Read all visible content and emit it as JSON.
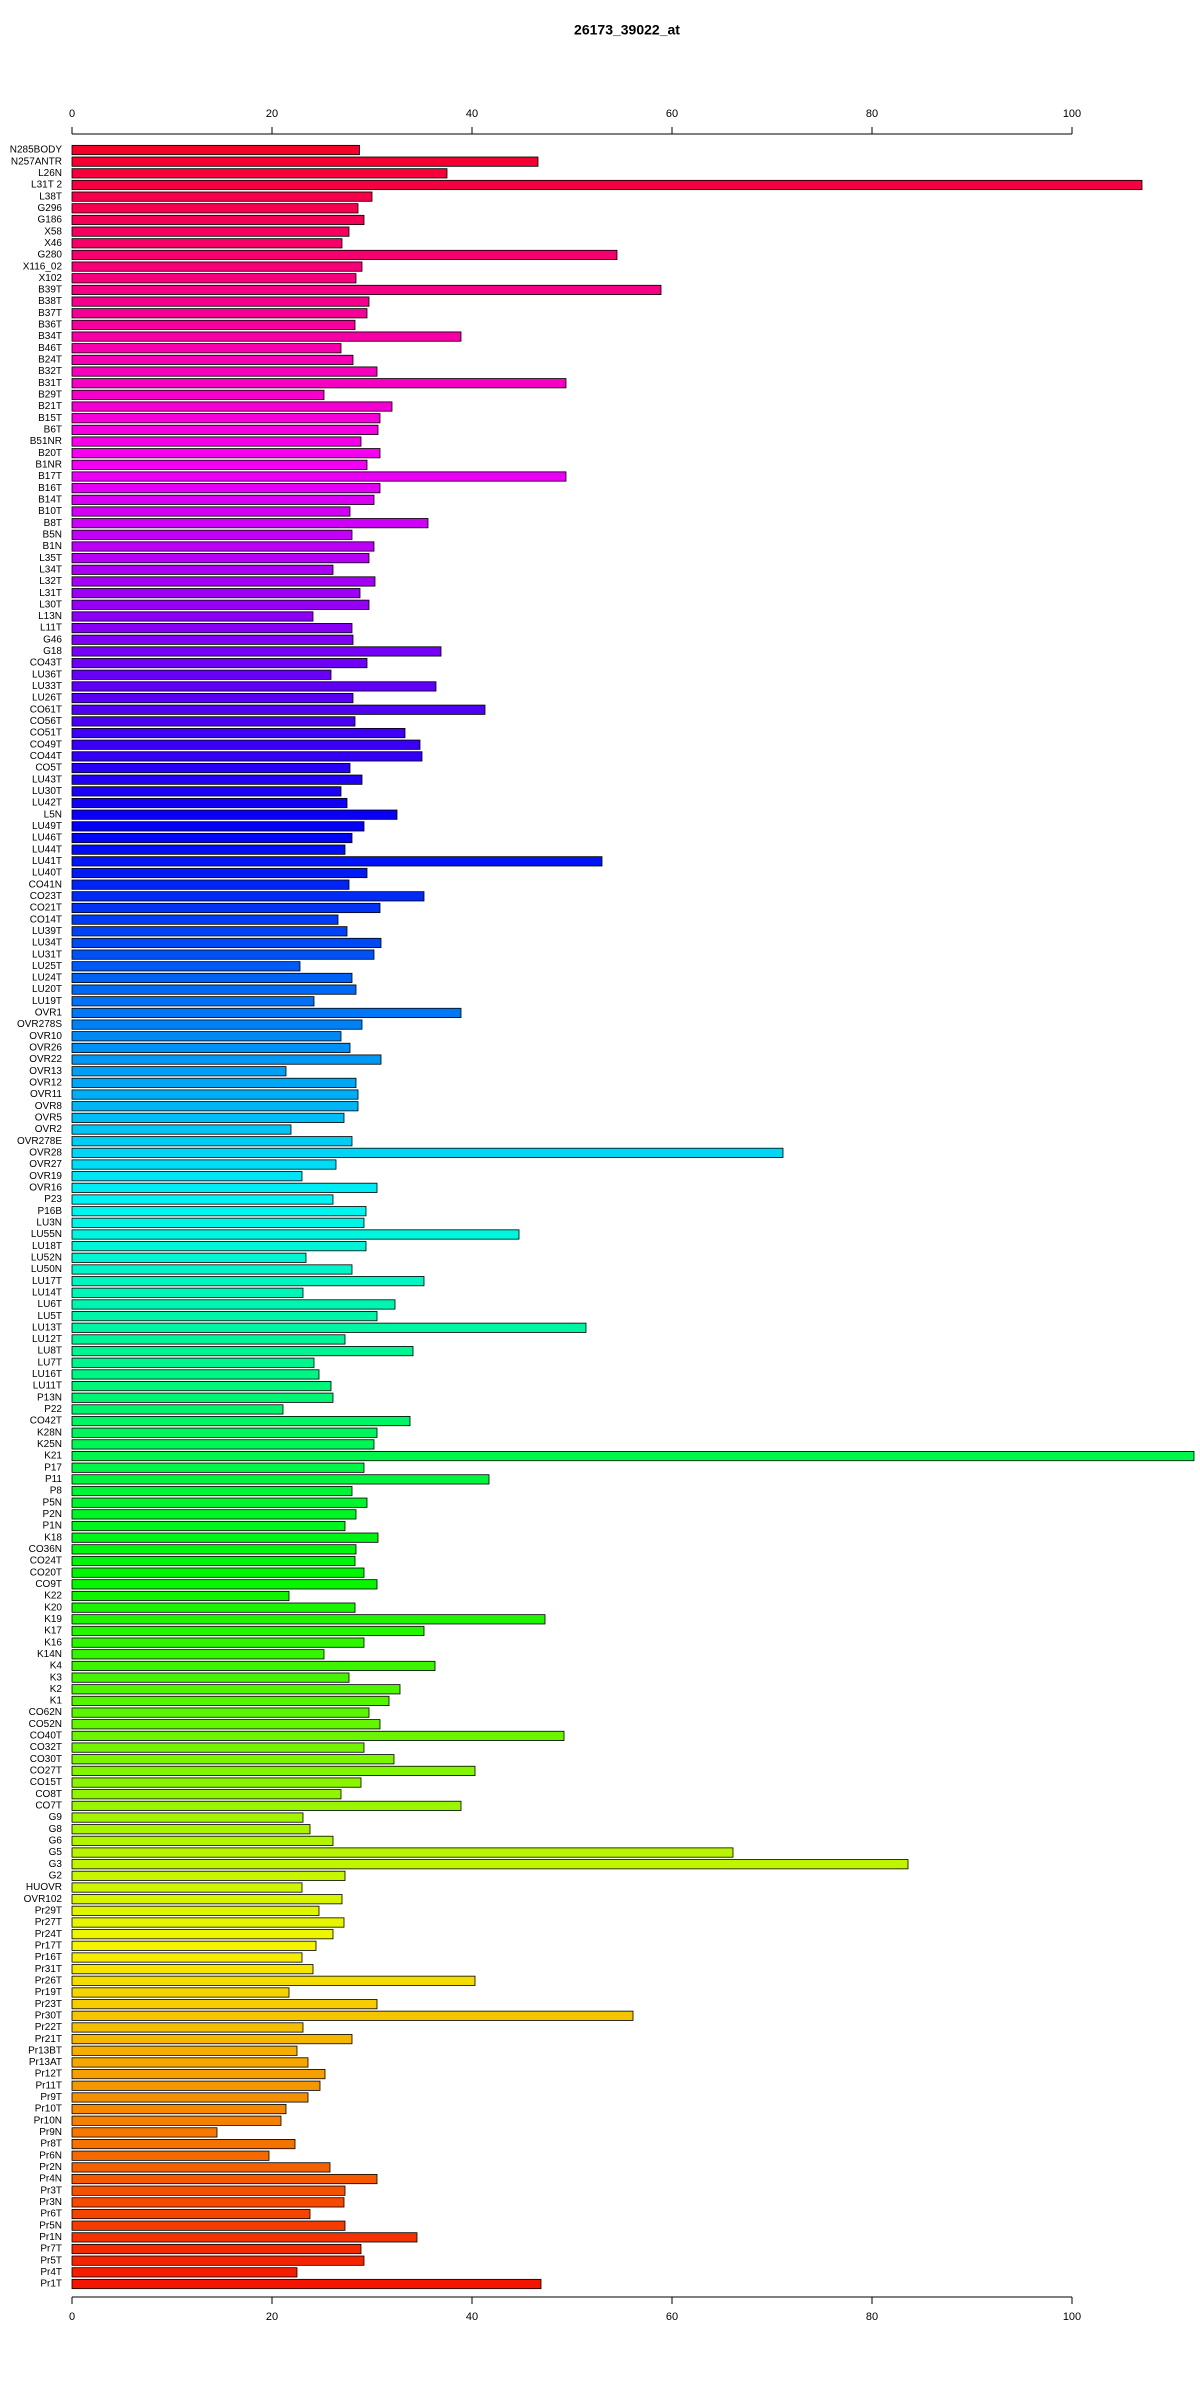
{
  "chart_data": {
    "type": "barh",
    "title": "26173_39022_at",
    "categories": [
      "N285BODY",
      "N257ANTR",
      "L26N",
      "L31T 2",
      "L38T",
      "G296",
      "G186",
      "X58",
      "X46",
      "G280",
      "X116_02",
      "X102",
      "B39T",
      "B38T",
      "B37T",
      "B36T",
      "B34T",
      "B46T",
      "B24T",
      "B32T",
      "B31T",
      "B29T",
      "B21T",
      "B15T",
      "B6T",
      "B51NR",
      "B20T",
      "B1NR",
      "B17T",
      "B16T",
      "B14T",
      "B10T",
      "B8T",
      "B5N",
      "B1N",
      "L35T",
      "L34T",
      "L32T",
      "L31T",
      "L30T",
      "L13N",
      "L11T",
      "G46",
      "G18",
      "CO43T",
      "LU36T",
      "LU33T",
      "LU26T",
      "CO61T",
      "CO56T",
      "CO51T",
      "CO49T",
      "CO44T",
      "CO5T",
      "LU43T",
      "LU30T",
      "LU42T",
      "L5N",
      "LU49T",
      "LU46T",
      "LU44T",
      "LU41T",
      "LU40T",
      "CO41N",
      "CO23T",
      "CO21T",
      "CO14T",
      "LU39T",
      "LU34T",
      "LU31T",
      "LU25T",
      "LU24T",
      "LU20T",
      "LU19T",
      "OVR1",
      "OVR278S",
      "OVR10",
      "OVR26",
      "OVR22",
      "OVR13",
      "OVR12",
      "OVR11",
      "OVR8",
      "OVR5",
      "OVR2",
      "OVR278E",
      "OVR28",
      "OVR27",
      "OVR19",
      "OVR16",
      "P23",
      "P16B",
      "LU3N",
      "LU55N",
      "LU18T",
      "LU52N",
      "LU50N",
      "LU17T",
      "LU14T",
      "LU6T",
      "LU5T",
      "LU13T",
      "LU12T",
      "LU8T",
      "LU7T",
      "LU16T",
      "LU11T",
      "P13N",
      "P22",
      "CO42T",
      "K28N",
      "K25N",
      "K21",
      "P17",
      "P11",
      "P8",
      "P5N",
      "P2N",
      "P1N",
      "K18",
      "CO36N",
      "CO24T",
      "CO20T",
      "CO9T",
      "K22",
      "K20",
      "K19",
      "K17",
      "K16",
      "K14N",
      "K4",
      "K3",
      "K2",
      "K1",
      "CO62N",
      "CO52N",
      "CO40T",
      "CO32T",
      "CO30T",
      "CO27T",
      "CO15T",
      "CO8T",
      "CO7T",
      "G9",
      "G8",
      "G6",
      "G5",
      "G3",
      "G2",
      "HUOVR",
      "OVR102",
      "Pr29T",
      "Pr27T",
      "Pr24T",
      "Pr17T",
      "Pr16T",
      "Pr31T",
      "Pr26T",
      "Pr19T",
      "Pr23T",
      "Pr30T",
      "Pr22T",
      "Pr21T",
      "Pr13BT",
      "Pr13AT",
      "Pr12T",
      "Pr11T",
      "Pr9T",
      "Pr10T",
      "Pr10N",
      "Pr9N",
      "Pr8T",
      "Pr6N",
      "Pr2N",
      "Pr4N",
      "Pr3T",
      "Pr3N",
      "Pr6T",
      "Pr5N",
      "Pr1N",
      "Pr7T",
      "Pr5T",
      "Pr4T",
      "Pr1T"
    ],
    "values": [
      28.75,
      46.6,
      37.5,
      107,
      30,
      28.6,
      29.2,
      27.7,
      27,
      54.5,
      29,
      28.4,
      58.9,
      29.7,
      29.5,
      28.3,
      38.9,
      26.9,
      28.1,
      30.5,
      49.4,
      25.2,
      32,
      30.8,
      30.6,
      28.9,
      30.8,
      29.5,
      49.4,
      30.8,
      30.2,
      27.8,
      35.6,
      28,
      30.2,
      29.7,
      26.1,
      30.3,
      28.8,
      29.7,
      24.1,
      28,
      28.1,
      36.9,
      29.5,
      25.9,
      36.4,
      28.1,
      41.3,
      28.3,
      33.3,
      34.8,
      35,
      27.8,
      29,
      26.9,
      27.5,
      32.5,
      29.2,
      28,
      27.3,
      53,
      29.5,
      27.7,
      35.2,
      30.8,
      26.6,
      27.5,
      30.9,
      30.2,
      22.8,
      28,
      28.4,
      24.2,
      38.9,
      29,
      26.9,
      27.8,
      30.9,
      21.4,
      28.4,
      28.6,
      28.6,
      27.2,
      21.9,
      28,
      71.1,
      26.4,
      23,
      30.5,
      26.1,
      29.4,
      29.2,
      44.7,
      29.4,
      23.4,
      28,
      35.2,
      23.1,
      32.3,
      30.5,
      51.4,
      27.3,
      34.1,
      24.2,
      24.7,
      25.9,
      26.1,
      21.1,
      33.8,
      30.5,
      30.2,
      112.2,
      29.2,
      41.7,
      28,
      29.5,
      28.4,
      27.3,
      30.6,
      28.4,
      28.3,
      29.2,
      30.5,
      21.7,
      28.3,
      47.3,
      35.2,
      29.2,
      25.2,
      36.3,
      27.7,
      32.8,
      31.7,
      29.7,
      30.8,
      49.2,
      29.2,
      32.2,
      40.3,
      28.9,
      26.9,
      38.9,
      23.1,
      23.8,
      26.1,
      66.1,
      83.6,
      27.3,
      23,
      27,
      24.7,
      27.2,
      26.1,
      24.4,
      23,
      24.1,
      40.3,
      21.7,
      30.5,
      56.1,
      23.1,
      28,
      22.5,
      23.6,
      25.3,
      24.8,
      23.6,
      21.4,
      20.9,
      14.5,
      22.3,
      19.7,
      25.8,
      30.5,
      27.3,
      27.2,
      23.8,
      27.3,
      34.5,
      28.9,
      29.2,
      22.5,
      46.9
    ],
    "color_hues": [
      350,
      5
    ],
    "xlim": [
      0,
      112.2
    ],
    "xticks": [
      0,
      20,
      40,
      60,
      80,
      100
    ]
  }
}
